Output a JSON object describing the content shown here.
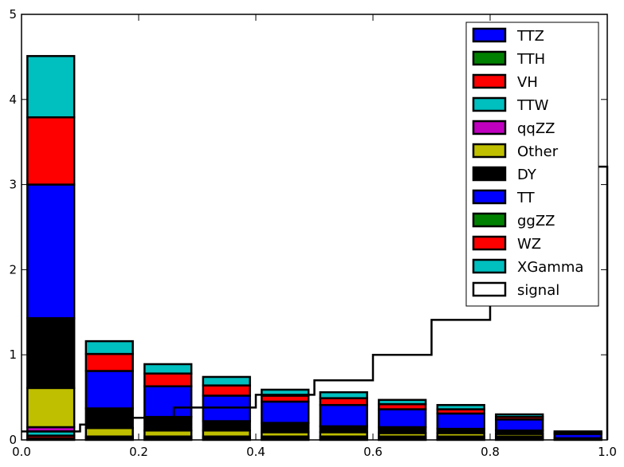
{
  "chart_data": {
    "type": "bar",
    "stacked": true,
    "title": "",
    "xlabel": "",
    "ylabel": "",
    "xlim": [
      0.0,
      1.0
    ],
    "ylim": [
      0,
      5
    ],
    "grid": false,
    "legend_position": "top-right",
    "bin_centers": [
      0.05,
      0.15,
      0.25,
      0.35,
      0.45,
      0.55,
      0.65,
      0.75,
      0.85,
      0.95
    ],
    "bar_width": 0.08,
    "x_ticks": [
      "0.0",
      "0.2",
      "0.4",
      "0.6",
      "0.8",
      "1.0"
    ],
    "y_ticks": [
      "0",
      "1",
      "2",
      "3",
      "4",
      "5"
    ],
    "series": [
      {
        "name": "TTZ",
        "color": "#0000ff",
        "values": [
          0.0,
          0.0,
          0.0,
          0.0,
          0.0,
          0.0,
          0.0,
          0.0,
          0.0,
          0.0
        ]
      },
      {
        "name": "TTH",
        "color": "#008000",
        "values": [
          0.02,
          0.01,
          0.01,
          0.01,
          0.01,
          0.01,
          0.01,
          0.01,
          0.01,
          0.0
        ]
      },
      {
        "name": "VH",
        "color": "#ff0000",
        "values": [
          0.03,
          0.01,
          0.01,
          0.01,
          0.01,
          0.01,
          0.01,
          0.01,
          0.01,
          0.0
        ]
      },
      {
        "name": "TTW",
        "color": "#00bfbf",
        "values": [
          0.05,
          0.01,
          0.01,
          0.01,
          0.01,
          0.01,
          0.01,
          0.01,
          0.01,
          0.0
        ]
      },
      {
        "name": "qqZZ",
        "color": "#bf00bf",
        "values": [
          0.05,
          0.01,
          0.01,
          0.01,
          0.01,
          0.01,
          0.01,
          0.01,
          0.01,
          0.0
        ]
      },
      {
        "name": "Other",
        "color": "#bfbf00",
        "values": [
          0.46,
          0.1,
          0.07,
          0.07,
          0.05,
          0.05,
          0.04,
          0.04,
          0.03,
          0.0
        ]
      },
      {
        "name": "DY",
        "color": "#000000",
        "values": [
          0.82,
          0.23,
          0.16,
          0.11,
          0.11,
          0.07,
          0.07,
          0.05,
          0.04,
          0.02
        ]
      },
      {
        "name": "TT",
        "color": "#0000ff",
        "values": [
          1.57,
          0.44,
          0.36,
          0.3,
          0.25,
          0.25,
          0.21,
          0.18,
          0.13,
          0.05
        ]
      },
      {
        "name": "ggZZ",
        "color": "#008000",
        "values": [
          0.0,
          0.0,
          0.0,
          0.0,
          0.0,
          0.0,
          0.0,
          0.0,
          0.0,
          0.0
        ]
      },
      {
        "name": "WZ",
        "color": "#ff0000",
        "values": [
          0.79,
          0.2,
          0.15,
          0.12,
          0.07,
          0.08,
          0.06,
          0.05,
          0.03,
          0.01
        ]
      },
      {
        "name": "XGamma",
        "color": "#00bfbf",
        "values": [
          0.72,
          0.15,
          0.11,
          0.1,
          0.07,
          0.07,
          0.05,
          0.05,
          0.03,
          0.02
        ]
      }
    ],
    "signal": {
      "name": "signal",
      "color": "#000000",
      "style": "step",
      "edges": [
        0.0,
        0.02,
        0.06,
        0.1,
        0.14,
        0.18,
        0.2,
        0.26,
        0.3,
        0.4,
        0.5,
        0.6,
        0.7,
        0.8,
        0.9,
        0.98,
        1.0
      ],
      "values": [
        0.1,
        0.1,
        0.1,
        0.18,
        0.18,
        0.26,
        0.26,
        0.38,
        0.38,
        0.53,
        0.7,
        1.0,
        1.41,
        1.9,
        2.75,
        3.21
      ]
    }
  }
}
